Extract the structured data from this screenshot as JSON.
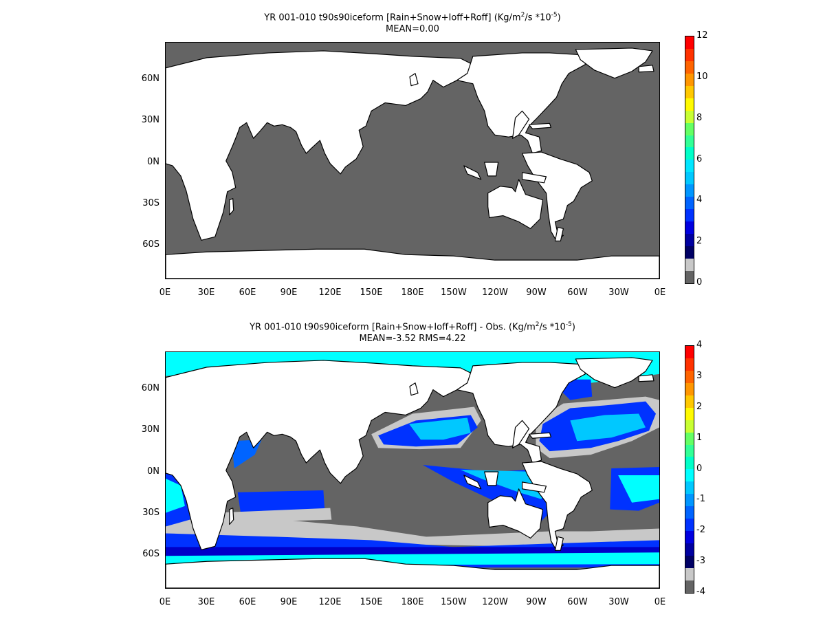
{
  "panels": [
    {
      "title_line1_pre": "YR 001-010 t90s90iceform [Rain+Snow+Ioff+Roff] (Kg/m",
      "title_sup1": "2",
      "title_line1_mid": "/s *10",
      "title_sup2": "-5",
      "title_line1_post": ")",
      "title_line2": "MEAN=0.00",
      "colorbar_ticks": [
        "12",
        "10",
        "8",
        "6",
        "4",
        "2",
        "0"
      ],
      "colorbar_colors": [
        "#ff0000",
        "#ff3200",
        "#ff6400",
        "#ff9600",
        "#ffc800",
        "#fffa00",
        "#c8ff32",
        "#64ff64",
        "#32ff96",
        "#00ffc8",
        "#00e6ff",
        "#00c8ff",
        "#0096ff",
        "#0064ff",
        "#0032ff",
        "#0000e0",
        "#0000a0",
        "#000064",
        "#c8c8c8",
        "#646464"
      ],
      "fill": "uniform"
    },
    {
      "title_line1_pre": "YR 001-010 t90s90iceform [Rain+Snow+Ioff+Roff] - Obs. (Kg/m",
      "title_sup1": "2",
      "title_line1_mid": "/s *10",
      "title_sup2": "-5",
      "title_line1_post": ")",
      "title_line2": "MEAN=-3.52   RMS=4.22",
      "colorbar_ticks": [
        "4",
        "3",
        "2",
        "1",
        "0",
        "-1",
        "-2",
        "-3",
        "-4"
      ],
      "colorbar_colors": [
        "#ff0000",
        "#ff3200",
        "#ff6400",
        "#ff9600",
        "#ffc800",
        "#fffa00",
        "#c8ff32",
        "#64ff64",
        "#32ff96",
        "#00ffc8",
        "#00ffff",
        "#00c8ff",
        "#0096ff",
        "#0064ff",
        "#0032ff",
        "#0000e0",
        "#0000a0",
        "#000064",
        "#c8c8c8",
        "#646464"
      ],
      "fill": "anomaly"
    }
  ],
  "lat_labels": [
    "60N",
    "30N",
    "0N",
    "30S",
    "60S"
  ],
  "lon_labels": [
    "0E",
    "30E",
    "60E",
    "90E",
    "120E",
    "150E",
    "180E",
    "150W",
    "120W",
    "90W",
    "60W",
    "30W",
    "0E"
  ],
  "colors": {
    "ocean": "#646464",
    "land": "#ffffff",
    "coast": "#000000",
    "light_gray": "#c8c8c8",
    "cyan": "#00ffff",
    "sky": "#00c8ff",
    "mid_blue": "#0064ff",
    "deep_blue": "#0032ff",
    "navy": "#0000c8"
  }
}
